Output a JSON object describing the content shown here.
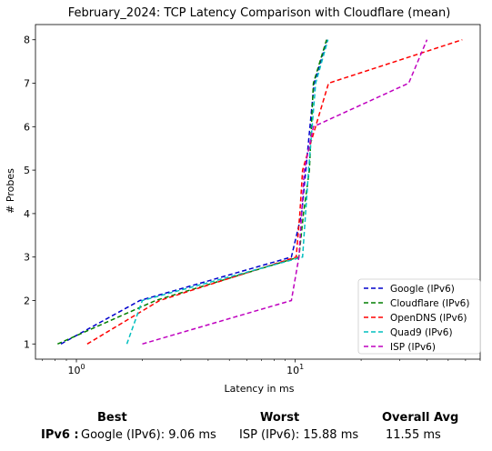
{
  "chart_data": {
    "type": "line",
    "title": "February_2024: TCP Latency Comparison with Cloudflare (mean)",
    "xlabel": "Latency in ms",
    "ylabel": "# Probes",
    "xscale": "log",
    "xlim": [
      0.65,
      70
    ],
    "ylim": [
      0.65,
      8.35
    ],
    "x_ticks": [
      {
        "value": 1,
        "label": "10^0"
      },
      {
        "value": 10,
        "label": "10^1"
      }
    ],
    "y_ticks": [
      1,
      2,
      3,
      4,
      5,
      6,
      7,
      8
    ],
    "grid": false,
    "legend_position": "lower-right",
    "series": [
      {
        "name": "Google (IPv6)",
        "color": "#0000cc",
        "x": [
          0.85,
          1.95,
          9.6,
          10.7,
          12.2,
          14.0
        ],
        "y": [
          1,
          2,
          3,
          4,
          7,
          8
        ]
      },
      {
        "name": "Cloudflare (IPv6)",
        "color": "#007f00",
        "x": [
          0.82,
          2.3,
          10.4,
          10.9,
          11.6,
          12.1,
          13.9
        ],
        "y": [
          1,
          2,
          3,
          4,
          5,
          7,
          8
        ]
      },
      {
        "name": "OpenDNS (IPv6)",
        "color": "#ff0000",
        "x": [
          1.12,
          2.4,
          10.1,
          10.5,
          10.8,
          14.2,
          58.0
        ],
        "y": [
          1,
          2,
          3,
          4,
          5,
          7,
          8
        ]
      },
      {
        "name": "Quad9 (IPv6)",
        "color": "#00bfbf",
        "x": [
          1.7,
          2.0,
          10.8,
          11.5,
          12.4,
          14.1
        ],
        "y": [
          1,
          2,
          3,
          5,
          7,
          8
        ]
      },
      {
        "name": "ISP (IPv6)",
        "color": "#bf00bf",
        "x": [
          2.0,
          9.6,
          10.4,
          11.0,
          12.1,
          33.0,
          40.0
        ],
        "y": [
          1,
          2,
          3,
          5,
          6,
          7,
          8
        ]
      }
    ]
  },
  "summary": {
    "best_heading": "Best",
    "worst_heading": "Worst",
    "avg_heading": "Overall Avg",
    "row_label": "IPv6 :",
    "best_value": "Google (IPv6): 9.06 ms",
    "worst_value": "ISP (IPv6): 15.88 ms",
    "avg_value": "11.55 ms"
  }
}
